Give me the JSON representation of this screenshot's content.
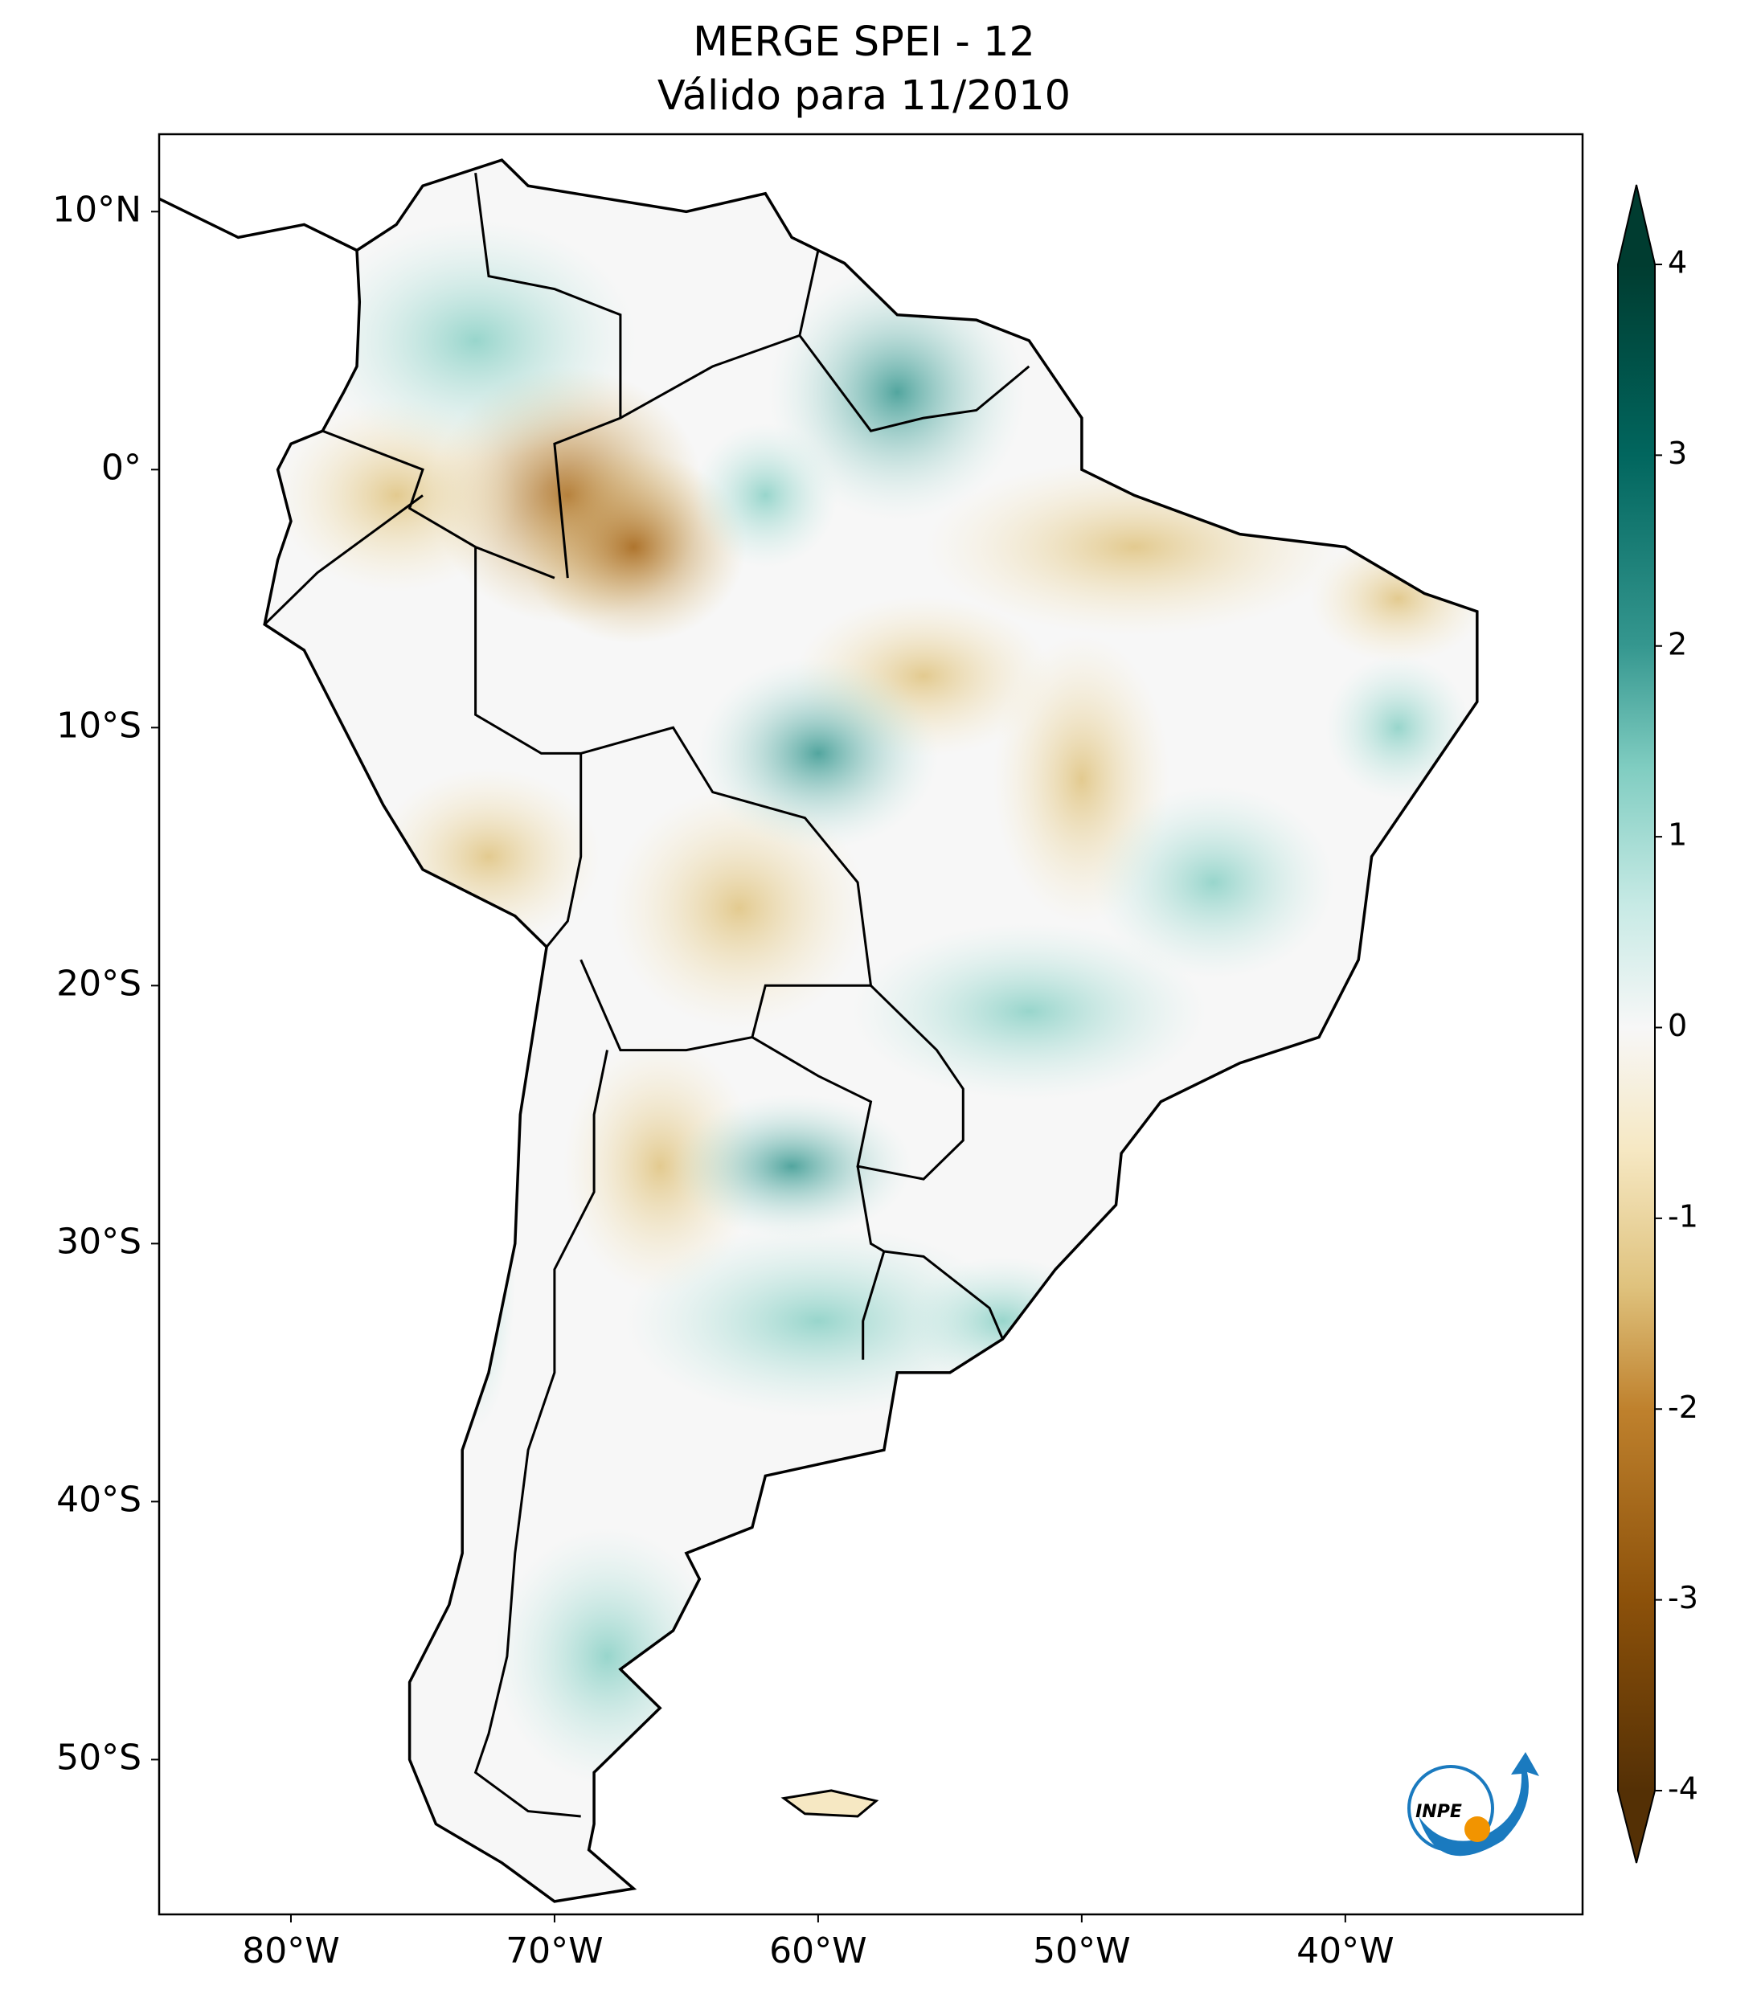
{
  "chart_data": {
    "type": "map",
    "title": "MERGE   SPEI - 12",
    "subtitle": "Válido para 11/2010",
    "xlim": [
      -85,
      -31
    ],
    "ylim": [
      -56,
      13
    ],
    "xticks": [
      {
        "value": -80,
        "label": "80°W"
      },
      {
        "value": -70,
        "label": "70°W"
      },
      {
        "value": -60,
        "label": "60°W"
      },
      {
        "value": -50,
        "label": "50°W"
      },
      {
        "value": -40,
        "label": "40°W"
      }
    ],
    "yticks": [
      {
        "value": 10,
        "label": "10°N"
      },
      {
        "value": 0,
        "label": "0°"
      },
      {
        "value": -10,
        "label": "10°S"
      },
      {
        "value": -20,
        "label": "20°S"
      },
      {
        "value": -30,
        "label": "30°S"
      },
      {
        "value": -40,
        "label": "40°S"
      },
      {
        "value": -50,
        "label": "50°S"
      }
    ],
    "colorbar": {
      "colormap": "BrBG",
      "lim": [
        -4,
        4
      ],
      "ticks": [
        4,
        3,
        2,
        1,
        0,
        -1,
        -2,
        -3,
        -4
      ]
    },
    "logo_text": "INPE"
  }
}
